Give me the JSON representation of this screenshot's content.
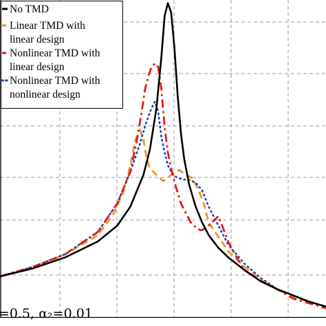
{
  "chart_data": {
    "type": "line",
    "grid": true,
    "legend_position": "top-left",
    "legend": [
      {
        "key": "no_tmd",
        "lines": [
          "No TMD"
        ]
      },
      {
        "key": "linear",
        "lines": [
          "Linear TMD with",
          "linear design"
        ]
      },
      {
        "key": "nl_lin",
        "lines": [
          "Nonlinear TMD with",
          "linear design"
        ]
      },
      {
        "key": "nl_nl",
        "lines": [
          "Nonlinear TMD with",
          "nonlinear design"
        ]
      }
    ],
    "annotation": "=0.5, α₂=0.01",
    "xlim": [
      0,
      100
    ],
    "ylim": [
      0,
      100
    ],
    "series": [
      {
        "key": "no_tmd",
        "color": "#000000",
        "style": "solid",
        "x": [
          0,
          10,
          20,
          30,
          36,
          40,
          44,
          46,
          48,
          49.5,
          50.5,
          51.5,
          52.5,
          53.5,
          54.5,
          55.5,
          56.5,
          58,
          60,
          62,
          64,
          67,
          70,
          75,
          80,
          85,
          90,
          95,
          100
        ],
        "y": [
          13,
          15.5,
          19,
          24,
          29,
          35,
          45,
          53,
          66,
          82,
          95,
          99,
          96,
          85,
          70,
          58,
          50,
          42,
          35,
          30,
          26,
          22,
          19,
          15,
          11.5,
          9,
          7,
          5,
          3.5
        ]
      },
      {
        "key": "linear",
        "color": "#f09224",
        "style": "dash",
        "x": [
          0,
          10,
          20,
          30,
          35,
          38,
          40,
          41.5,
          43,
          44,
          45,
          46,
          48,
          50,
          51.5,
          53,
          55,
          57,
          59,
          61,
          62.5,
          64,
          66,
          68,
          70,
          75,
          80,
          85,
          90,
          95,
          100
        ],
        "y": [
          13,
          15.5,
          20,
          26,
          33,
          40,
          48,
          56,
          59,
          56,
          50,
          47,
          45,
          43,
          44,
          45.5,
          46.5,
          45,
          44,
          40,
          36,
          30,
          27,
          24,
          21,
          16,
          12,
          9,
          6.5,
          5,
          3.5
        ]
      },
      {
        "key": "nl_lin",
        "color": "#e31a1c",
        "style": "dashdot",
        "x": [
          0,
          10,
          20,
          30,
          36,
          40,
          42,
          43.5,
          44.5,
          45.5,
          46.5,
          47.5,
          48.5,
          49.5,
          50.5,
          51.5,
          52.5,
          54,
          55.5,
          57,
          58.5,
          60,
          61.5,
          63,
          65,
          67,
          68.5,
          70,
          72,
          75,
          80,
          85,
          90,
          95,
          100
        ],
        "y": [
          13,
          16,
          20,
          27,
          36,
          46,
          56,
          65,
          72,
          76,
          79,
          80,
          79,
          72,
          60,
          52,
          47,
          41,
          36,
          33,
          30,
          28.5,
          27.5,
          28,
          30,
          32,
          28,
          24,
          20,
          15,
          11.5,
          9,
          6,
          4.5,
          3
        ]
      },
      {
        "key": "nl_nl",
        "color": "#1f3fbf",
        "style": "dot",
        "x": [
          0,
          10,
          20,
          30,
          36,
          40,
          43,
          45,
          46.5,
          47.5,
          48.5,
          49.5,
          50.5,
          51.5,
          53,
          54.5,
          56,
          57.5,
          59,
          60.5,
          62,
          64,
          66,
          68,
          70,
          75,
          80,
          85,
          90,
          95,
          100
        ],
        "y": [
          13,
          16,
          20,
          27,
          36,
          46,
          55,
          62,
          66,
          68,
          65,
          57,
          52,
          48,
          45,
          44,
          43.5,
          43.5,
          43,
          42,
          40,
          35,
          31,
          27,
          23,
          17,
          12.5,
          9,
          7,
          5,
          3.5
        ]
      }
    ]
  }
}
